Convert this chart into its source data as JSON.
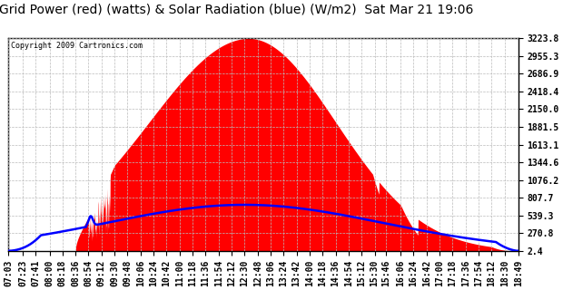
{
  "title": "Grid Power (red) (watts) & Solar Radiation (blue) (W/m2)  Sat Mar 21 19:06",
  "copyright": "Copyright 2009 Cartronics.com",
  "background_color": "#ffffff",
  "plot_bg_color": "#ffffff",
  "grid_color": "#aaaaaa",
  "yticks": [
    2.4,
    270.8,
    539.3,
    807.7,
    1076.2,
    1344.6,
    1613.1,
    1881.5,
    2150.0,
    2418.4,
    2686.9,
    2955.3,
    3223.8
  ],
  "ymin": 2.4,
  "ymax": 3223.8,
  "time_labels": [
    "07:03",
    "07:23",
    "07:41",
    "08:00",
    "08:18",
    "08:36",
    "08:54",
    "09:12",
    "09:30",
    "09:48",
    "10:06",
    "10:24",
    "10:42",
    "11:00",
    "11:18",
    "11:36",
    "11:54",
    "12:12",
    "12:30",
    "12:48",
    "13:06",
    "13:24",
    "13:42",
    "14:00",
    "14:18",
    "14:36",
    "14:54",
    "15:12",
    "15:30",
    "15:46",
    "16:06",
    "16:24",
    "16:42",
    "17:00",
    "17:18",
    "17:36",
    "17:54",
    "18:12",
    "18:30",
    "18:49"
  ],
  "red_fill_color": "#ff0000",
  "blue_line_color": "#0000ff",
  "title_fontsize": 10,
  "tick_fontsize": 7
}
